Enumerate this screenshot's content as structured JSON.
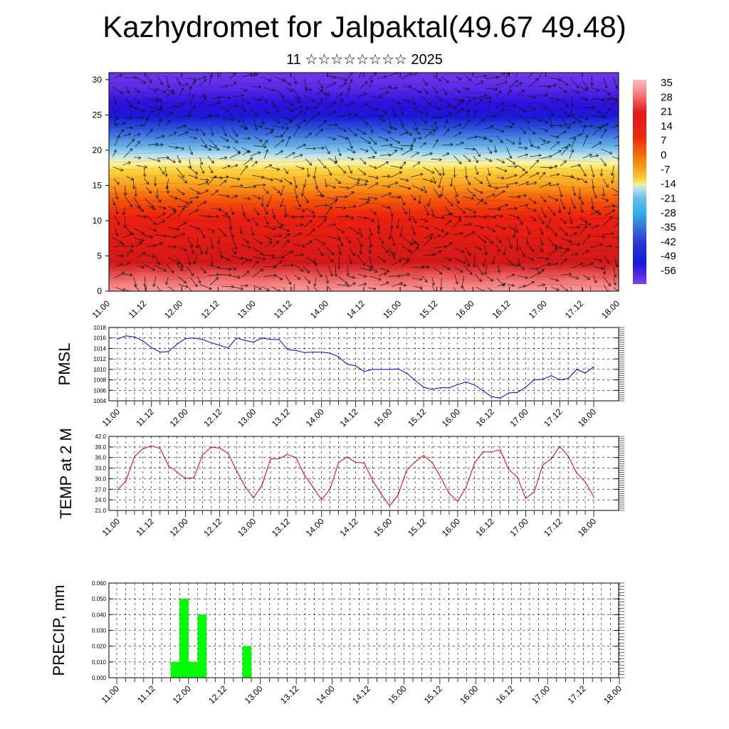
{
  "title": "Kazhydromet for Jalpaktal(49.67 49.48)",
  "subtitle": "11 ☆☆☆☆☆☆☆☆ 2025",
  "chart_data": [
    {
      "type": "heatmap",
      "name": "temperature-height-section",
      "x_tick_labels": [
        "11.00",
        "11.12",
        "12.00",
        "12.12",
        "13.00",
        "13.12",
        "14.00",
        "14.12",
        "15.00",
        "15.12",
        "16.00",
        "16.12",
        "17.00",
        "17.12",
        "18.00"
      ],
      "y_tick_labels": [
        "0",
        "5",
        "10",
        "15",
        "20",
        "25",
        "30"
      ],
      "ylim": [
        0,
        31
      ],
      "colorbar_labels": [
        "35",
        "28",
        "21",
        "14",
        "7",
        "0",
        "-7",
        "-14",
        "-21",
        "-28",
        "-35",
        "-42",
        "-49",
        "-56"
      ],
      "colorbar_range": [
        -60,
        38
      ],
      "overlay": "wind arrows"
    },
    {
      "type": "line",
      "name": "pmsl",
      "ylabel": "PMSL",
      "color": "#0000dd",
      "ylim": [
        1004,
        1018
      ],
      "y_tick_labels": [
        "1004",
        "1006",
        "1008",
        "1010",
        "1012",
        "1014",
        "1016",
        "1018"
      ],
      "x_tick_labels": [
        "11.00",
        "11.12",
        "12.00",
        "12.12",
        "13.00",
        "13.12",
        "14.00",
        "14.12",
        "15.00",
        "15.12",
        "16.00",
        "16.12",
        "17.00",
        "17.12",
        "18.00"
      ],
      "values": [
        1015.8,
        1016.4,
        1016.2,
        1015.4,
        1014.2,
        1013.3,
        1013.4,
        1014.8,
        1015.9,
        1016.0,
        1015.7,
        1015.1,
        1014.6,
        1014.1,
        1016.0,
        1015.5,
        1015.2,
        1016.0,
        1015.7,
        1015.7,
        1013.8,
        1013.6,
        1013.2,
        1013.3,
        1013.3,
        1013.1,
        1012.4,
        1011.0,
        1010.7,
        1009.6,
        1010.0,
        1010.0,
        1010.0,
        1010.1,
        1009.3,
        1007.9,
        1006.6,
        1006.2,
        1006.5,
        1006.5,
        1007.1,
        1007.6,
        1007.0,
        1005.9,
        1004.8,
        1004.5,
        1005.5,
        1005.6,
        1006.6,
        1008.0,
        1008.1,
        1008.8,
        1008.0,
        1008.3,
        1010.0,
        1009.3,
        1010.5
      ]
    },
    {
      "type": "line",
      "name": "temp-2m",
      "ylabel": "TEMP at 2 M",
      "color": "#dd0000",
      "ylim": [
        21,
        42
      ],
      "y_tick_labels": [
        "21.0",
        "24.0",
        "27.0",
        "30.0",
        "33.0",
        "36.0",
        "39.0",
        "42.0"
      ],
      "x_tick_labels": [
        "11.00",
        "11.12",
        "12.00",
        "12.12",
        "13.00",
        "13.12",
        "14.00",
        "14.12",
        "15.00",
        "15.12",
        "16.00",
        "16.12",
        "17.00",
        "17.12",
        "18.00"
      ],
      "values": [
        26.8,
        29.4,
        36.3,
        38.5,
        39.3,
        38.6,
        33.7,
        31.9,
        30.0,
        30.3,
        36.8,
        38.9,
        38.7,
        37.2,
        32.3,
        27.8,
        24.6,
        28.2,
        35.6,
        35.7,
        36.9,
        35.9,
        31.0,
        27.6,
        24.0,
        27.1,
        34.6,
        36.2,
        34.6,
        34.5,
        29.5,
        25.7,
        22.3,
        25.4,
        32.4,
        34.8,
        36.6,
        34.6,
        30.4,
        25.8,
        23.6,
        27.6,
        34.5,
        37.6,
        37.6,
        38.2,
        32.6,
        30.6,
        24.4,
        26.3,
        33.9,
        35.6,
        39.2,
        36.4,
        31.6,
        29.1,
        24.9
      ]
    },
    {
      "type": "bar",
      "name": "precip",
      "ylabel": "PRECIP, mm",
      "color": "#00ff00",
      "ylim": [
        0,
        0.06
      ],
      "y_tick_labels": [
        "0.000",
        "0.010",
        "0.020",
        "0.030",
        "0.040",
        "0.050",
        "0.060"
      ],
      "x_tick_labels": [
        "11.00",
        "11.12",
        "12.00",
        "12.12",
        "13.00",
        "13.12",
        "14.00",
        "14.12",
        "15.00",
        "15.12",
        "16.00",
        "16.12",
        "17.00",
        "17.12",
        "18.00"
      ],
      "values": [
        0,
        0,
        0,
        0,
        0,
        0,
        0.01,
        0.05,
        0.01,
        0.04,
        0,
        0,
        0,
        0,
        0.02,
        0,
        0,
        0,
        0,
        0,
        0,
        0,
        0,
        0,
        0,
        0,
        0,
        0,
        0,
        0,
        0,
        0,
        0,
        0,
        0,
        0,
        0,
        0,
        0,
        0,
        0,
        0,
        0,
        0,
        0,
        0,
        0,
        0,
        0,
        0,
        0,
        0,
        0,
        0,
        0,
        0
      ]
    }
  ]
}
